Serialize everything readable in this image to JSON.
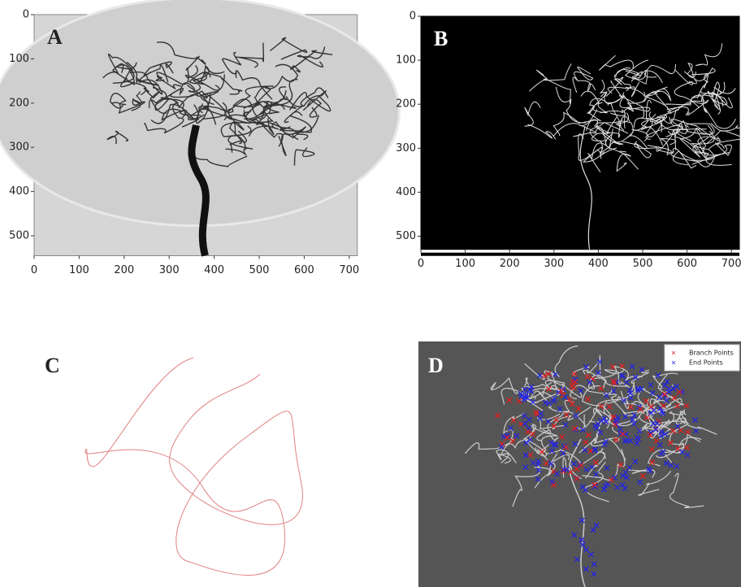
{
  "panels": [
    {
      "label": "A",
      "xlim": [
        0,
        718
      ],
      "ylim": [
        0,
        545
      ],
      "xticks": [
        0,
        100,
        200,
        300,
        400,
        500,
        600,
        700
      ],
      "yticks": [
        0,
        100,
        200,
        300,
        400,
        500
      ]
    },
    {
      "label": "B",
      "xlim": [
        0,
        718
      ],
      "ylim": [
        0,
        530
      ],
      "xticks": [
        0,
        100,
        200,
        300,
        400,
        500,
        600,
        700
      ],
      "yticks": [
        0,
        100,
        200,
        300,
        400,
        500
      ]
    },
    {
      "label": "C"
    },
    {
      "label": "D",
      "legend": [
        {
          "name": "Branch Points",
          "color": "#e02020"
        },
        {
          "name": "End Points",
          "color": "#2525e0"
        }
      ]
    }
  ]
}
